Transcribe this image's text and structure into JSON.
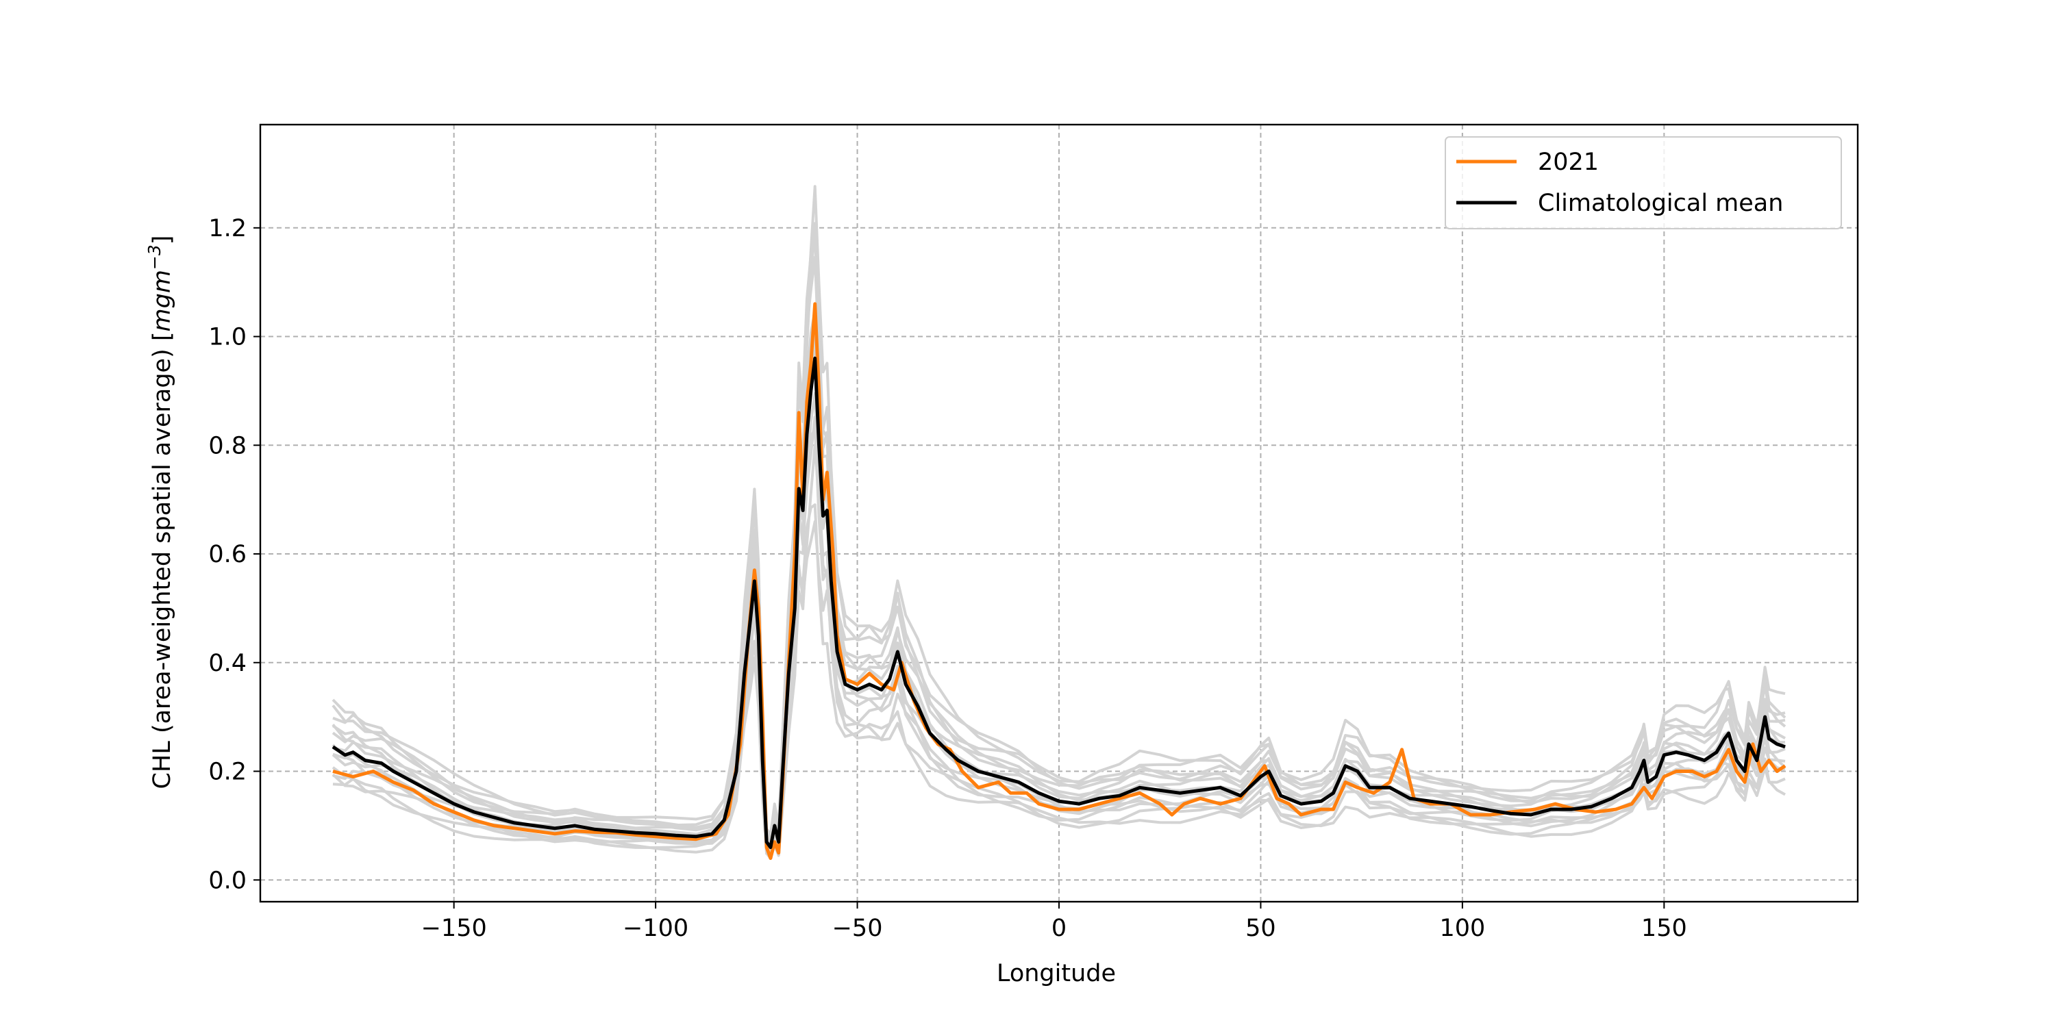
{
  "chart_data": {
    "type": "line",
    "title": "",
    "xlabel": "Longitude",
    "ylabel": "CHL (area-weighted spatial average) [mgm⁻³]",
    "ylabel_main": "CHL (area-weighted spatial average) [",
    "ylabel_unit": "mgm",
    "ylabel_exp": "−3",
    "ylabel_close": "]",
    "xlim": [
      -198,
      198
    ],
    "ylim": [
      -0.04,
      1.39
    ],
    "xticks": [
      -150,
      -100,
      -50,
      0,
      50,
      100,
      150
    ],
    "xtick_labels": [
      "−150",
      "−100",
      "−50",
      "0",
      "50",
      "100",
      "150"
    ],
    "yticks": [
      0.0,
      0.2,
      0.4,
      0.6,
      0.8,
      1.0,
      1.2
    ],
    "ytick_labels": [
      "0.0",
      "0.2",
      "0.4",
      "0.6",
      "0.8",
      "1.0",
      "1.2"
    ],
    "grid": true,
    "legend_position": "top-right",
    "colors": {
      "year": "#ff7f0e",
      "mean": "#000000",
      "ensemble": "#d3d3d3"
    },
    "series": [
      {
        "name": "2021",
        "role": "year",
        "points": [
          [
            -180,
            0.2
          ],
          [
            -175,
            0.19
          ],
          [
            -170,
            0.2
          ],
          [
            -165,
            0.18
          ],
          [
            -160,
            0.165
          ],
          [
            -155,
            0.14
          ],
          [
            -150,
            0.125
          ],
          [
            -145,
            0.11
          ],
          [
            -140,
            0.1
          ],
          [
            -135,
            0.095
          ],
          [
            -130,
            0.09
          ],
          [
            -125,
            0.085
          ],
          [
            -120,
            0.09
          ],
          [
            -115,
            0.088
          ],
          [
            -110,
            0.087
          ],
          [
            -105,
            0.083
          ],
          [
            -100,
            0.08
          ],
          [
            -95,
            0.077
          ],
          [
            -90,
            0.075
          ],
          [
            -85,
            0.085
          ],
          [
            -82,
            0.12
          ],
          [
            -79,
            0.25
          ],
          [
            -77,
            0.45
          ],
          [
            -75.5,
            0.57
          ],
          [
            -74.5,
            0.5
          ],
          [
            -73.5,
            0.3
          ],
          [
            -72.5,
            0.06
          ],
          [
            -71.5,
            0.04
          ],
          [
            -70.5,
            0.07
          ],
          [
            -69.5,
            0.05
          ],
          [
            -68.5,
            0.18
          ],
          [
            -67,
            0.4
          ],
          [
            -65.5,
            0.6
          ],
          [
            -64.5,
            0.86
          ],
          [
            -63.5,
            0.7
          ],
          [
            -62.5,
            0.88
          ],
          [
            -61.5,
            0.95
          ],
          [
            -60.5,
            1.06
          ],
          [
            -59.5,
            0.9
          ],
          [
            -58.5,
            0.7
          ],
          [
            -57.5,
            0.75
          ],
          [
            -56,
            0.6
          ],
          [
            -55,
            0.45
          ],
          [
            -53,
            0.37
          ],
          [
            -50,
            0.36
          ],
          [
            -47,
            0.38
          ],
          [
            -44,
            0.36
          ],
          [
            -41,
            0.35
          ],
          [
            -39,
            0.4
          ],
          [
            -36,
            0.33
          ],
          [
            -33,
            0.28
          ],
          [
            -30,
            0.25
          ],
          [
            -27,
            0.24
          ],
          [
            -24,
            0.2
          ],
          [
            -20,
            0.17
          ],
          [
            -15,
            0.18
          ],
          [
            -12,
            0.16
          ],
          [
            -8,
            0.16
          ],
          [
            -5,
            0.14
          ],
          [
            0,
            0.13
          ],
          [
            5,
            0.13
          ],
          [
            10,
            0.14
          ],
          [
            15,
            0.15
          ],
          [
            20,
            0.16
          ],
          [
            25,
            0.14
          ],
          [
            28,
            0.12
          ],
          [
            31,
            0.14
          ],
          [
            35,
            0.15
          ],
          [
            40,
            0.14
          ],
          [
            45,
            0.15
          ],
          [
            48,
            0.18
          ],
          [
            51,
            0.21
          ],
          [
            54,
            0.15
          ],
          [
            57,
            0.14
          ],
          [
            60,
            0.12
          ],
          [
            65,
            0.13
          ],
          [
            68,
            0.13
          ],
          [
            71,
            0.18
          ],
          [
            74,
            0.17
          ],
          [
            78,
            0.16
          ],
          [
            82,
            0.18
          ],
          [
            85,
            0.24
          ],
          [
            88,
            0.15
          ],
          [
            92,
            0.14
          ],
          [
            97,
            0.14
          ],
          [
            102,
            0.12
          ],
          [
            107,
            0.12
          ],
          [
            112,
            0.125
          ],
          [
            118,
            0.13
          ],
          [
            123,
            0.14
          ],
          [
            128,
            0.13
          ],
          [
            133,
            0.125
          ],
          [
            138,
            0.13
          ],
          [
            142,
            0.14
          ],
          [
            145,
            0.17
          ],
          [
            147,
            0.15
          ],
          [
            150,
            0.19
          ],
          [
            153,
            0.2
          ],
          [
            157,
            0.2
          ],
          [
            160,
            0.19
          ],
          [
            163,
            0.2
          ],
          [
            166,
            0.24
          ],
          [
            168,
            0.2
          ],
          [
            170,
            0.18
          ],
          [
            172,
            0.25
          ],
          [
            174,
            0.2
          ],
          [
            176,
            0.22
          ],
          [
            178,
            0.2
          ],
          [
            180,
            0.21
          ]
        ]
      },
      {
        "name": "Climatological mean",
        "role": "mean",
        "points": [
          [
            -180,
            0.245
          ],
          [
            -177,
            0.23
          ],
          [
            -175,
            0.235
          ],
          [
            -172,
            0.22
          ],
          [
            -168,
            0.215
          ],
          [
            -165,
            0.2
          ],
          [
            -160,
            0.18
          ],
          [
            -155,
            0.16
          ],
          [
            -150,
            0.14
          ],
          [
            -145,
            0.125
          ],
          [
            -140,
            0.115
          ],
          [
            -135,
            0.105
          ],
          [
            -130,
            0.1
          ],
          [
            -125,
            0.095
          ],
          [
            -120,
            0.1
          ],
          [
            -115,
            0.093
          ],
          [
            -110,
            0.09
          ],
          [
            -105,
            0.087
          ],
          [
            -100,
            0.085
          ],
          [
            -95,
            0.082
          ],
          [
            -90,
            0.08
          ],
          [
            -86,
            0.085
          ],
          [
            -83,
            0.11
          ],
          [
            -80,
            0.2
          ],
          [
            -78,
            0.38
          ],
          [
            -76.5,
            0.48
          ],
          [
            -75.5,
            0.55
          ],
          [
            -74.5,
            0.45
          ],
          [
            -73.5,
            0.22
          ],
          [
            -72.5,
            0.07
          ],
          [
            -71.5,
            0.06
          ],
          [
            -70.5,
            0.1
          ],
          [
            -69.5,
            0.07
          ],
          [
            -68.5,
            0.2
          ],
          [
            -67,
            0.38
          ],
          [
            -65.5,
            0.5
          ],
          [
            -64.5,
            0.72
          ],
          [
            -63.5,
            0.68
          ],
          [
            -62.5,
            0.82
          ],
          [
            -61.5,
            0.9
          ],
          [
            -60.5,
            0.96
          ],
          [
            -59.5,
            0.8
          ],
          [
            -58.5,
            0.67
          ],
          [
            -57.5,
            0.68
          ],
          [
            -56.5,
            0.55
          ],
          [
            -55,
            0.42
          ],
          [
            -53,
            0.36
          ],
          [
            -50,
            0.35
          ],
          [
            -47,
            0.36
          ],
          [
            -44,
            0.35
          ],
          [
            -42,
            0.37
          ],
          [
            -40,
            0.42
          ],
          [
            -38,
            0.36
          ],
          [
            -35,
            0.32
          ],
          [
            -32,
            0.27
          ],
          [
            -28,
            0.24
          ],
          [
            -25,
            0.22
          ],
          [
            -20,
            0.2
          ],
          [
            -15,
            0.19
          ],
          [
            -10,
            0.18
          ],
          [
            -5,
            0.16
          ],
          [
            0,
            0.145
          ],
          [
            5,
            0.14
          ],
          [
            10,
            0.15
          ],
          [
            15,
            0.155
          ],
          [
            20,
            0.17
          ],
          [
            25,
            0.165
          ],
          [
            30,
            0.16
          ],
          [
            35,
            0.165
          ],
          [
            40,
            0.17
          ],
          [
            45,
            0.155
          ],
          [
            50,
            0.19
          ],
          [
            52,
            0.2
          ],
          [
            55,
            0.155
          ],
          [
            60,
            0.14
          ],
          [
            65,
            0.145
          ],
          [
            68,
            0.16
          ],
          [
            71,
            0.21
          ],
          [
            74,
            0.2
          ],
          [
            77,
            0.17
          ],
          [
            82,
            0.17
          ],
          [
            87,
            0.15
          ],
          [
            92,
            0.145
          ],
          [
            97,
            0.14
          ],
          [
            102,
            0.135
          ],
          [
            107,
            0.128
          ],
          [
            112,
            0.122
          ],
          [
            117,
            0.12
          ],
          [
            122,
            0.13
          ],
          [
            127,
            0.13
          ],
          [
            132,
            0.135
          ],
          [
            137,
            0.15
          ],
          [
            142,
            0.17
          ],
          [
            144,
            0.2
          ],
          [
            145,
            0.22
          ],
          [
            146,
            0.18
          ],
          [
            148,
            0.19
          ],
          [
            150,
            0.23
          ],
          [
            153,
            0.235
          ],
          [
            156,
            0.23
          ],
          [
            160,
            0.22
          ],
          [
            163,
            0.235
          ],
          [
            165,
            0.26
          ],
          [
            166,
            0.27
          ],
          [
            168,
            0.22
          ],
          [
            170,
            0.2
          ],
          [
            171,
            0.25
          ],
          [
            173,
            0.22
          ],
          [
            175,
            0.3
          ],
          [
            176,
            0.26
          ],
          [
            178,
            0.25
          ],
          [
            180,
            0.245
          ]
        ]
      }
    ]
  }
}
